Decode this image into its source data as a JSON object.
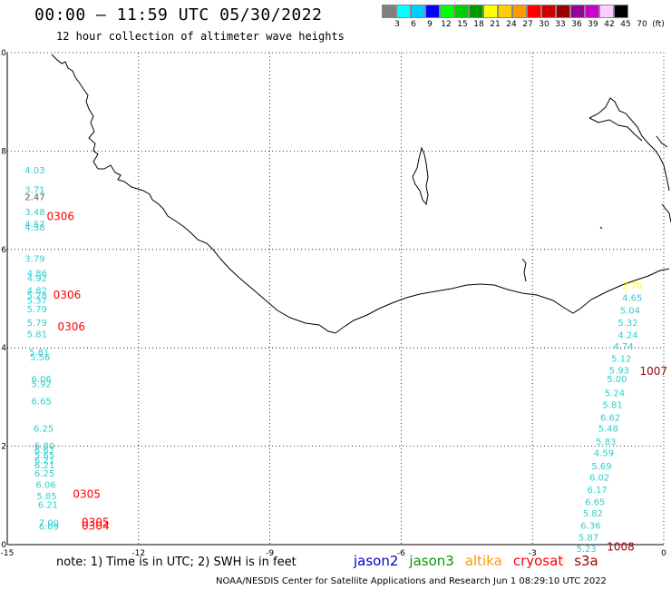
{
  "header": {
    "title": "00:00 – 11:59 UTC 05/30/2022",
    "subtitle": "12 hour collection of altimeter wave heights"
  },
  "legend": {
    "colors": [
      "#808080",
      "#00ffff",
      "#00ccff",
      "#0000ff",
      "#00ff00",
      "#00cc00",
      "#009900",
      "#ffff00",
      "#ffcc00",
      "#ff9900",
      "#ff0000",
      "#cc0000",
      "#990000",
      "#990099",
      "#cc00cc",
      "#ffccff",
      "#000000"
    ],
    "labels": [
      "3",
      "6",
      "9",
      "12",
      "15",
      "18",
      "21",
      "24",
      "27",
      "30",
      "33",
      "36",
      "39",
      "42",
      "45",
      "70",
      "(ft)"
    ]
  },
  "axes": {
    "x_ticks": [
      "-15",
      "-12",
      "-9",
      "-6",
      "-3",
      "0"
    ],
    "y_ticks": [
      "0",
      "2",
      "4",
      "6",
      "8",
      "10"
    ]
  },
  "observations_left": [
    {
      "v": "4.03",
      "c": "#33cccc",
      "x": -14.6,
      "y": 7.55
    },
    {
      "v": "3.71",
      "c": "#33cccc",
      "x": -14.6,
      "y": 7.15
    },
    {
      "v": "2.47",
      "c": "#555555",
      "x": -14.6,
      "y": 7.0
    },
    {
      "v": "3.48",
      "c": "#33cccc",
      "x": -14.6,
      "y": 6.7
    },
    {
      "v": "4.57",
      "c": "#33cccc",
      "x": -14.6,
      "y": 6.45
    },
    {
      "v": "4.58",
      "c": "#33cccc",
      "x": -14.6,
      "y": 6.38
    },
    {
      "v": "3.79",
      "c": "#33cccc",
      "x": -14.6,
      "y": 5.75
    },
    {
      "v": "4.86",
      "c": "#33cccc",
      "x": -14.55,
      "y": 5.45
    },
    {
      "v": "4.92",
      "c": "#33cccc",
      "x": -14.55,
      "y": 5.35
    },
    {
      "v": "4.82",
      "c": "#33cccc",
      "x": -14.55,
      "y": 5.1
    },
    {
      "v": "5.28",
      "c": "#33cccc",
      "x": -14.55,
      "y": 5.0
    },
    {
      "v": "5.37",
      "c": "#33cccc",
      "x": -14.55,
      "y": 4.9
    },
    {
      "v": "5.79",
      "c": "#33cccc",
      "x": -14.55,
      "y": 4.72
    },
    {
      "v": "5.79",
      "c": "#33cccc",
      "x": -14.55,
      "y": 4.45
    },
    {
      "v": "5.81",
      "c": "#33cccc",
      "x": -14.55,
      "y": 4.22
    },
    {
      "v": "5.81",
      "c": "#33cccc",
      "x": -14.5,
      "y": 3.85
    },
    {
      "v": "5.56",
      "c": "#33cccc",
      "x": -14.48,
      "y": 3.75
    },
    {
      "v": "6.06",
      "c": "#33cccc",
      "x": -14.45,
      "y": 3.3
    },
    {
      "v": "5.92",
      "c": "#33cccc",
      "x": -14.45,
      "y": 3.2
    },
    {
      "v": "6.65",
      "c": "#33cccc",
      "x": -14.45,
      "y": 2.85
    },
    {
      "v": "6.25",
      "c": "#33cccc",
      "x": -14.4,
      "y": 2.3
    },
    {
      "v": "6.80",
      "c": "#33cccc",
      "x": -14.38,
      "y": 1.95
    },
    {
      "v": "6.67",
      "c": "#33cccc",
      "x": -14.38,
      "y": 1.85
    },
    {
      "v": "5.65",
      "c": "#33cccc",
      "x": -14.38,
      "y": 1.75
    },
    {
      "v": "6.21",
      "c": "#33cccc",
      "x": -14.38,
      "y": 1.65
    },
    {
      "v": "6.21",
      "c": "#33cccc",
      "x": -14.38,
      "y": 1.55
    },
    {
      "v": "6.25",
      "c": "#33cccc",
      "x": -14.38,
      "y": 1.38
    },
    {
      "v": "6.06",
      "c": "#33cccc",
      "x": -14.35,
      "y": 1.15
    },
    {
      "v": "5.85",
      "c": "#33cccc",
      "x": -14.33,
      "y": 0.92
    },
    {
      "v": "6.21",
      "c": "#33cccc",
      "x": -14.3,
      "y": 0.75
    },
    {
      "v": "7.00",
      "c": "#33cccc",
      "x": -14.28,
      "y": 0.38
    },
    {
      "v": "6.09",
      "c": "#33cccc",
      "x": -14.28,
      "y": 0.3
    }
  ],
  "observations_right": [
    {
      "v": "3.76",
      "c": "#ffff00",
      "x": -0.95,
      "y": 5.2
    },
    {
      "v": "4.65",
      "c": "#33cccc",
      "x": -0.95,
      "y": 4.95
    },
    {
      "v": "5.04",
      "c": "#33cccc",
      "x": -1.0,
      "y": 4.7
    },
    {
      "v": "5.32",
      "c": "#33cccc",
      "x": -1.05,
      "y": 4.45
    },
    {
      "v": "4.24",
      "c": "#33cccc",
      "x": -1.05,
      "y": 4.2
    },
    {
      "v": "4.74",
      "c": "#33cccc",
      "x": -1.15,
      "y": 3.97
    },
    {
      "v": "5.12",
      "c": "#33cccc",
      "x": -1.2,
      "y": 3.72
    },
    {
      "v": "5.93",
      "c": "#33cccc",
      "x": -1.25,
      "y": 3.48
    },
    {
      "v": "5.00",
      "c": "#33cccc",
      "x": -1.3,
      "y": 3.3
    },
    {
      "v": "5.24",
      "c": "#33cccc",
      "x": -1.35,
      "y": 3.02
    },
    {
      "v": "5.81",
      "c": "#33cccc",
      "x": -1.4,
      "y": 2.78
    },
    {
      "v": "6.62",
      "c": "#33cccc",
      "x": -1.45,
      "y": 2.52
    },
    {
      "v": "5.48",
      "c": "#33cccc",
      "x": -1.5,
      "y": 2.3
    },
    {
      "v": "5.83",
      "c": "#33cccc",
      "x": -1.55,
      "y": 2.03
    },
    {
      "v": "4.59",
      "c": "#33cccc",
      "x": -1.6,
      "y": 1.8
    },
    {
      "v": "5.69",
      "c": "#33cccc",
      "x": -1.65,
      "y": 1.53
    },
    {
      "v": "6.02",
      "c": "#33cccc",
      "x": -1.7,
      "y": 1.3
    },
    {
      "v": "6.17",
      "c": "#33cccc",
      "x": -1.75,
      "y": 1.05
    },
    {
      "v": "6.65",
      "c": "#33cccc",
      "x": -1.8,
      "y": 0.8
    },
    {
      "v": "5.82",
      "c": "#33cccc",
      "x": -1.85,
      "y": 0.57
    },
    {
      "v": "6.36",
      "c": "#33cccc",
      "x": -1.9,
      "y": 0.32
    },
    {
      "v": "5.87",
      "c": "#33cccc",
      "x": -1.95,
      "y": 0.08
    },
    {
      "v": "5.23",
      "c": "#33cccc",
      "x": -2.0,
      "y": -0.15
    }
  ],
  "time_labels": [
    {
      "v": "0306",
      "c": "#ff0000",
      "x": -14.1,
      "y": 6.6
    },
    {
      "v": "0306",
      "c": "#ff0000",
      "x": -13.95,
      "y": 5.0
    },
    {
      "v": "0306",
      "c": "#ff0000",
      "x": -13.85,
      "y": 4.35
    },
    {
      "v": "0305",
      "c": "#ff0000",
      "x": -13.5,
      "y": 0.95
    },
    {
      "v": "0305",
      "c": "#ff0000",
      "x": -13.3,
      "y": 0.38
    },
    {
      "v": "0304",
      "c": "#ff0000",
      "x": -13.3,
      "y": 0.3
    },
    {
      "v": "1007",
      "c": "#990000",
      "x": -0.55,
      "y": 3.45
    },
    {
      "v": "1008",
      "c": "#990000",
      "x": -1.3,
      "y": -0.12
    }
  ],
  "footer": {
    "note": "note:  1) Time is in UTC;  2) SWH is in feet",
    "satellites": [
      {
        "name": "jason2",
        "color": "#0000cc"
      },
      {
        "name": "jason3",
        "color": "#009900"
      },
      {
        "name": "altika",
        "color": "#ff9900"
      },
      {
        "name": "cryosat",
        "color": "#ff0000"
      },
      {
        "name": "s3a",
        "color": "#990000"
      }
    ],
    "credit": "NOAA/NESDIS Center for Satellite Applications and Research    Jun  1 08:29:10 UTC 2022"
  }
}
